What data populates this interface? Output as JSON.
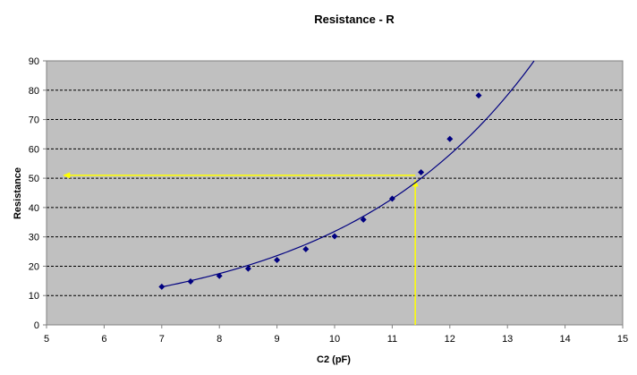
{
  "chart_data": {
    "type": "scatter",
    "title": "Resistance - R",
    "xlabel": "C2 (pF)",
    "ylabel": "Resistance",
    "xlim": [
      5,
      15
    ],
    "ylim": [
      0,
      90
    ],
    "x_ticks": [
      5,
      6,
      7,
      8,
      9,
      10,
      11,
      12,
      13,
      14,
      15
    ],
    "y_ticks": [
      0,
      10,
      20,
      30,
      40,
      50,
      60,
      70,
      80,
      90
    ],
    "grid": "horizontal-dashed",
    "legend": "none",
    "series": [
      {
        "marker": "diamond",
        "color": "#000080",
        "x": [
          7,
          7.5,
          8,
          8.5,
          9,
          9.5,
          10,
          10.5,
          11,
          11.5,
          12,
          12.5
        ],
        "y": [
          13,
          14.8,
          16.7,
          19.2,
          22.1,
          25.8,
          30.2,
          35.9,
          43,
          52,
          63.4,
          78.2
        ]
      }
    ],
    "trendline": {
      "type": "exponential",
      "color": "#000080",
      "x_start": 7,
      "a": 12.95,
      "b": 0.3
    },
    "annotation_lines": {
      "color": "#ffff00",
      "vertical": {
        "x": 11.4,
        "y_from": 0,
        "y_to": 49.3
      },
      "horizontal": {
        "y": 51,
        "x_from": 11.4,
        "x_to": 5.3
      }
    },
    "colors": {
      "plot_area": "#c0c0c0",
      "grid": "#000000",
      "axis": "#808080"
    }
  }
}
